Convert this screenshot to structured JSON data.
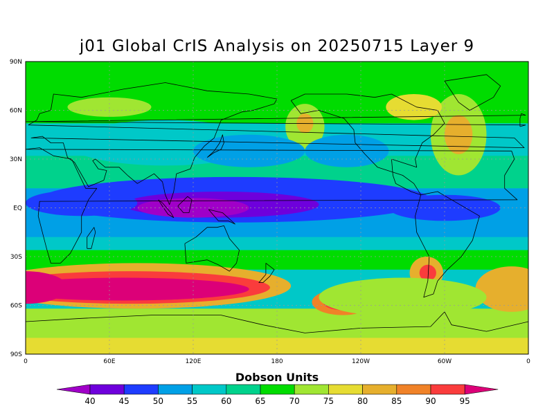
{
  "title": "j01 Global CrIS Analysis on 20250715 Layer 9",
  "map": {
    "projection": "cylindrical equidistant",
    "lon_range": [
      0,
      360
    ],
    "lat_range": [
      -90,
      90
    ],
    "lat_ticks": [
      {
        "lat": 90,
        "label": "90N"
      },
      {
        "lat": 60,
        "label": "60N"
      },
      {
        "lat": 30,
        "label": "30N"
      },
      {
        "lat": 0,
        "label": "EQ"
      },
      {
        "lat": -30,
        "label": "30S"
      },
      {
        "lat": -60,
        "label": "60S"
      },
      {
        "lat": -90,
        "label": "90S"
      }
    ],
    "lon_ticks": [
      {
        "lon": 0,
        "label": "0"
      },
      {
        "lon": 60,
        "label": "60E"
      },
      {
        "lon": 120,
        "label": "120E"
      },
      {
        "lon": 180,
        "label": "180"
      },
      {
        "lon": 240,
        "label": "120W"
      },
      {
        "lon": 300,
        "label": "60W"
      },
      {
        "lon": 360,
        "label": "0"
      }
    ],
    "grid": true,
    "coastlines": true
  },
  "colorbar": {
    "label": "Dobson Units",
    "levels": [
      40,
      45,
      50,
      55,
      60,
      65,
      70,
      75,
      80,
      85,
      90,
      95
    ],
    "colors": [
      "#a000c8",
      "#6e00dc",
      "#1e3cff",
      "#00a0e6",
      "#00c8c8",
      "#00d28c",
      "#00dc00",
      "#a0e632",
      "#e6dc32",
      "#e6af2d",
      "#f08228",
      "#fa3c3c",
      "#dc0078"
    ],
    "extend": "both"
  },
  "field_features": [
    {
      "name": "tropical minimum",
      "value_du": 45
    },
    {
      "name": "southern hemisphere maximum",
      "value_du": 95
    },
    {
      "name": "northern high latitudes",
      "value_du": 70
    }
  ]
}
